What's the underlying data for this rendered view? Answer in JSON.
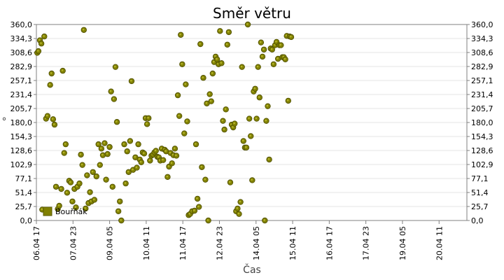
{
  "chart_data": {
    "type": "scatter",
    "title": "Směr větru",
    "xlabel": "Čas",
    "ylabel": "°",
    "ylim": [
      0,
      360
    ],
    "xlim": [
      0,
      14.7
    ],
    "y_ticks": [
      "0,0",
      "25,7",
      "51,4",
      "77,1",
      "102,9",
      "128,6",
      "154,3",
      "180,0",
      "205,7",
      "231,4",
      "257,1",
      "282,9",
      "308,6",
      "334,3",
      "360,0"
    ],
    "x_ticks": [
      {
        "label": "06.04 17",
        "x": 0.0
      },
      {
        "label": "07.04 23",
        "x": 1.25
      },
      {
        "label": "09.04 05",
        "x": 2.5
      },
      {
        "label": "10.04 11",
        "x": 3.75
      },
      {
        "label": "11.04 17",
        "x": 5.0
      },
      {
        "label": "12.04 23",
        "x": 6.25
      },
      {
        "label": "14.04 05",
        "x": 7.5
      },
      {
        "label": "15.04 11",
        "x": 8.75
      },
      {
        "label": "16.04 17",
        "x": 10.0
      },
      {
        "label": "17.04 23",
        "x": 11.25
      },
      {
        "label": "19.04 05",
        "x": 12.5
      },
      {
        "label": "20.04 11",
        "x": 13.75
      }
    ],
    "grid": true,
    "legend": "bottom-left",
    "marker_color": "#808000",
    "series": [
      {
        "name": "Bouřňák",
        "points": [
          [
            0.03,
            308
          ],
          [
            0.07,
            311
          ],
          [
            0.12,
            331
          ],
          [
            0.17,
            325
          ],
          [
            0.2,
            20
          ],
          [
            0.27,
            338
          ],
          [
            0.33,
            187
          ],
          [
            0.38,
            192
          ],
          [
            0.47,
            249
          ],
          [
            0.52,
            270
          ],
          [
            0.57,
            186
          ],
          [
            0.62,
            176
          ],
          [
            0.67,
            62
          ],
          [
            0.73,
            21
          ],
          [
            0.78,
            27
          ],
          [
            0.85,
            58
          ],
          [
            0.9,
            275
          ],
          [
            0.95,
            124
          ],
          [
            1.0,
            140
          ],
          [
            1.05,
            51
          ],
          [
            1.12,
            73
          ],
          [
            1.17,
            70
          ],
          [
            1.23,
            35
          ],
          [
            1.3,
            58
          ],
          [
            1.35,
            24
          ],
          [
            1.4,
            62
          ],
          [
            1.47,
            68
          ],
          [
            1.52,
            121
          ],
          [
            1.57,
            102
          ],
          [
            1.62,
            350
          ],
          [
            1.68,
            22
          ],
          [
            1.73,
            83
          ],
          [
            1.78,
            32
          ],
          [
            1.83,
            52
          ],
          [
            1.88,
            35
          ],
          [
            1.93,
            89
          ],
          [
            1.98,
            38
          ],
          [
            2.05,
            81
          ],
          [
            2.12,
            140
          ],
          [
            2.17,
            102
          ],
          [
            2.22,
            132
          ],
          [
            2.27,
            120
          ],
          [
            2.33,
            142
          ],
          [
            2.38,
            75
          ],
          [
            2.43,
            122
          ],
          [
            2.5,
            135
          ],
          [
            2.55,
            237
          ],
          [
            2.6,
            62
          ],
          [
            2.65,
            223
          ],
          [
            2.7,
            282
          ],
          [
            2.75,
            181
          ],
          [
            2.8,
            17
          ],
          [
            2.85,
            35
          ],
          [
            2.9,
            0
          ],
          [
            3.0,
            140
          ],
          [
            3.05,
            68
          ],
          [
            3.1,
            127
          ],
          [
            3.15,
            89
          ],
          [
            3.2,
            146
          ],
          [
            3.25,
            256
          ],
          [
            3.3,
            93
          ],
          [
            3.38,
            116
          ],
          [
            3.43,
            97
          ],
          [
            3.48,
            140
          ],
          [
            3.53,
            112
          ],
          [
            3.58,
            107
          ],
          [
            3.63,
            125
          ],
          [
            3.68,
            123
          ],
          [
            3.73,
            188
          ],
          [
            3.78,
            177
          ],
          [
            3.83,
            188
          ],
          [
            3.88,
            110
          ],
          [
            3.93,
            119
          ],
          [
            3.98,
            121
          ],
          [
            4.03,
            125
          ],
          [
            4.08,
            128
          ],
          [
            4.13,
            117
          ],
          [
            4.18,
            116
          ],
          [
            4.23,
            110
          ],
          [
            4.28,
            132
          ],
          [
            4.33,
            111
          ],
          [
            4.38,
            130
          ],
          [
            4.43,
            127
          ],
          [
            4.48,
            80
          ],
          [
            4.53,
            99
          ],
          [
            4.58,
            124
          ],
          [
            4.63,
            105
          ],
          [
            4.68,
            120
          ],
          [
            4.73,
            132
          ],
          [
            4.78,
            119
          ],
          [
            4.83,
            230
          ],
          [
            4.88,
            192
          ],
          [
            4.93,
            341
          ],
          [
            4.98,
            287
          ],
          [
            5.05,
            160
          ],
          [
            5.1,
            250
          ],
          [
            5.15,
            182
          ],
          [
            5.2,
            10
          ],
          [
            5.25,
            12
          ],
          [
            5.32,
            17
          ],
          [
            5.4,
            18
          ],
          [
            5.45,
            140
          ],
          [
            5.5,
            40
          ],
          [
            5.55,
            25
          ],
          [
            5.6,
            324
          ],
          [
            5.65,
            98
          ],
          [
            5.7,
            262
          ],
          [
            5.77,
            75
          ],
          [
            5.82,
            215
          ],
          [
            5.87,
            0
          ],
          [
            5.92,
            232
          ],
          [
            5.97,
            219
          ],
          [
            6.02,
            270
          ],
          [
            6.07,
            291
          ],
          [
            6.12,
            301
          ],
          [
            6.17,
            296
          ],
          [
            6.22,
            287
          ],
          [
            6.27,
            348
          ],
          [
            6.32,
            289
          ],
          [
            6.37,
            183
          ],
          [
            6.42,
            167
          ],
          [
            6.47,
            204
          ],
          [
            6.52,
            323
          ],
          [
            6.57,
            346
          ],
          [
            6.62,
            70
          ],
          [
            6.67,
            176
          ],
          [
            6.72,
            171
          ],
          [
            6.77,
            178
          ],
          [
            6.82,
            17
          ],
          [
            6.87,
            22
          ],
          [
            6.92,
            12
          ],
          [
            6.97,
            34
          ],
          [
            7.02,
            282
          ],
          [
            7.07,
            146
          ],
          [
            7.12,
            134
          ],
          [
            7.17,
            134
          ],
          [
            7.22,
            360
          ],
          [
            7.27,
            187
          ],
          [
            7.32,
            155
          ],
          [
            7.37,
            74
          ],
          [
            7.42,
            237
          ],
          [
            7.47,
            242
          ],
          [
            7.52,
            187
          ],
          [
            7.57,
            282
          ],
          [
            7.62,
            226
          ],
          [
            7.67,
            327
          ],
          [
            7.72,
            301
          ],
          [
            7.77,
            314
          ],
          [
            7.8,
            0
          ],
          [
            7.85,
            183
          ],
          [
            7.9,
            210
          ],
          [
            7.95,
            112
          ],
          [
            8.0,
            316
          ],
          [
            8.05,
            314
          ],
          [
            8.1,
            287
          ],
          [
            8.15,
            322
          ],
          [
            8.2,
            328
          ],
          [
            8.25,
            297
          ],
          [
            8.3,
            322
          ],
          [
            8.35,
            322
          ],
          [
            8.4,
            300
          ],
          [
            8.45,
            300
          ],
          [
            8.5,
            296
          ],
          [
            8.55,
            339
          ],
          [
            8.6,
            220
          ],
          [
            8.65,
            338
          ],
          [
            8.7,
            337
          ]
        ]
      }
    ]
  }
}
